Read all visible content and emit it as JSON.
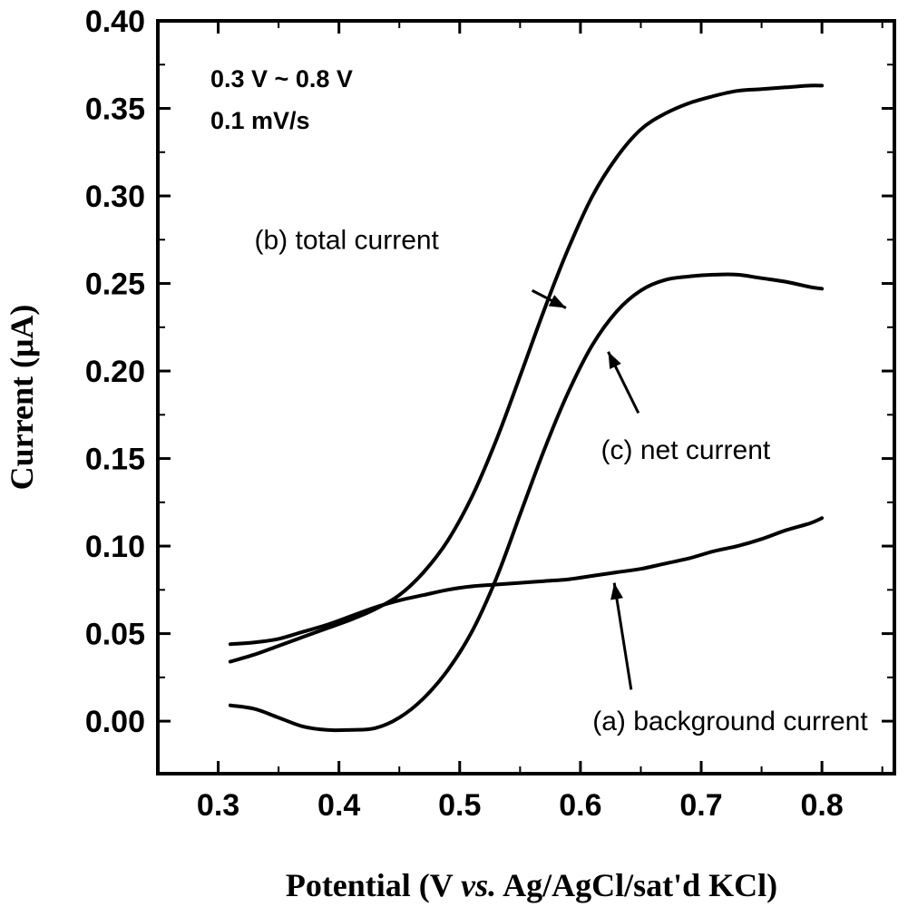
{
  "chart_data": {
    "type": "line",
    "title": "",
    "xlabel": {
      "prefix": "Potential (V ",
      "italic": "vs.",
      "suffix": " Ag/AgCl/sat'd KCl)"
    },
    "ylabel": "Current (μA)",
    "xlim": [
      0.25,
      0.86
    ],
    "ylim": [
      -0.03,
      0.4
    ],
    "xticks": [
      0.3,
      0.4,
      0.5,
      0.6,
      0.7,
      0.8
    ],
    "xtick_labels": [
      "0.3",
      "0.4",
      "0.5",
      "0.6",
      "0.7",
      "0.8"
    ],
    "yticks": [
      0.0,
      0.05,
      0.1,
      0.15,
      0.2,
      0.25,
      0.3,
      0.35,
      0.4
    ],
    "ytick_labels": [
      "0.00",
      "0.05",
      "0.10",
      "0.15",
      "0.20",
      "0.25",
      "0.30",
      "0.35",
      "0.40"
    ],
    "grid": false,
    "conditions": [
      "0.3 V ~ 0.8 V",
      "0.1 mV/s"
    ],
    "series": [
      {
        "name": "(a) background current",
        "x": [
          0.31,
          0.33,
          0.35,
          0.37,
          0.39,
          0.41,
          0.43,
          0.45,
          0.47,
          0.49,
          0.51,
          0.53,
          0.55,
          0.57,
          0.59,
          0.61,
          0.63,
          0.65,
          0.67,
          0.69,
          0.71,
          0.73,
          0.75,
          0.77,
          0.79,
          0.8
        ],
        "y": [
          0.044,
          0.045,
          0.047,
          0.051,
          0.055,
          0.06,
          0.065,
          0.069,
          0.072,
          0.075,
          0.077,
          0.078,
          0.079,
          0.08,
          0.081,
          0.083,
          0.085,
          0.087,
          0.09,
          0.093,
          0.097,
          0.1,
          0.104,
          0.109,
          0.113,
          0.116
        ]
      },
      {
        "name": "(b) total current",
        "x": [
          0.31,
          0.33,
          0.35,
          0.37,
          0.39,
          0.41,
          0.43,
          0.45,
          0.47,
          0.49,
          0.51,
          0.53,
          0.55,
          0.57,
          0.59,
          0.61,
          0.63,
          0.65,
          0.67,
          0.69,
          0.71,
          0.73,
          0.75,
          0.77,
          0.79,
          0.8
        ],
        "y": [
          0.034,
          0.038,
          0.043,
          0.048,
          0.053,
          0.058,
          0.064,
          0.072,
          0.085,
          0.103,
          0.128,
          0.16,
          0.197,
          0.235,
          0.27,
          0.3,
          0.322,
          0.338,
          0.347,
          0.353,
          0.357,
          0.36,
          0.361,
          0.362,
          0.363,
          0.363
        ]
      },
      {
        "name": "(c) net current",
        "x": [
          0.31,
          0.33,
          0.35,
          0.37,
          0.39,
          0.41,
          0.43,
          0.45,
          0.47,
          0.49,
          0.51,
          0.53,
          0.55,
          0.57,
          0.59,
          0.61,
          0.63,
          0.65,
          0.67,
          0.69,
          0.71,
          0.73,
          0.75,
          0.77,
          0.79,
          0.8
        ],
        "y": [
          0.009,
          0.007,
          0.002,
          -0.003,
          -0.005,
          -0.005,
          -0.004,
          0.002,
          0.013,
          0.029,
          0.051,
          0.081,
          0.118,
          0.155,
          0.188,
          0.215,
          0.234,
          0.246,
          0.252,
          0.254,
          0.255,
          0.255,
          0.253,
          0.251,
          0.248,
          0.247
        ]
      }
    ],
    "annotations": [
      {
        "text": "(b) total current",
        "label_at": [
          0.33,
          0.275
        ],
        "arrow_from": [
          0.56,
          0.246
        ],
        "arrow_to": [
          0.588,
          0.236
        ]
      },
      {
        "text": "(c) net current",
        "label_at": [
          0.617,
          0.155
        ],
        "arrow_from": [
          0.648,
          0.176
        ],
        "arrow_to": [
          0.623,
          0.211
        ]
      },
      {
        "text": "(a) background current",
        "label_at": [
          0.61,
          0.0
        ],
        "arrow_from": [
          0.642,
          0.018
        ],
        "arrow_to": [
          0.628,
          0.079
        ]
      }
    ]
  }
}
